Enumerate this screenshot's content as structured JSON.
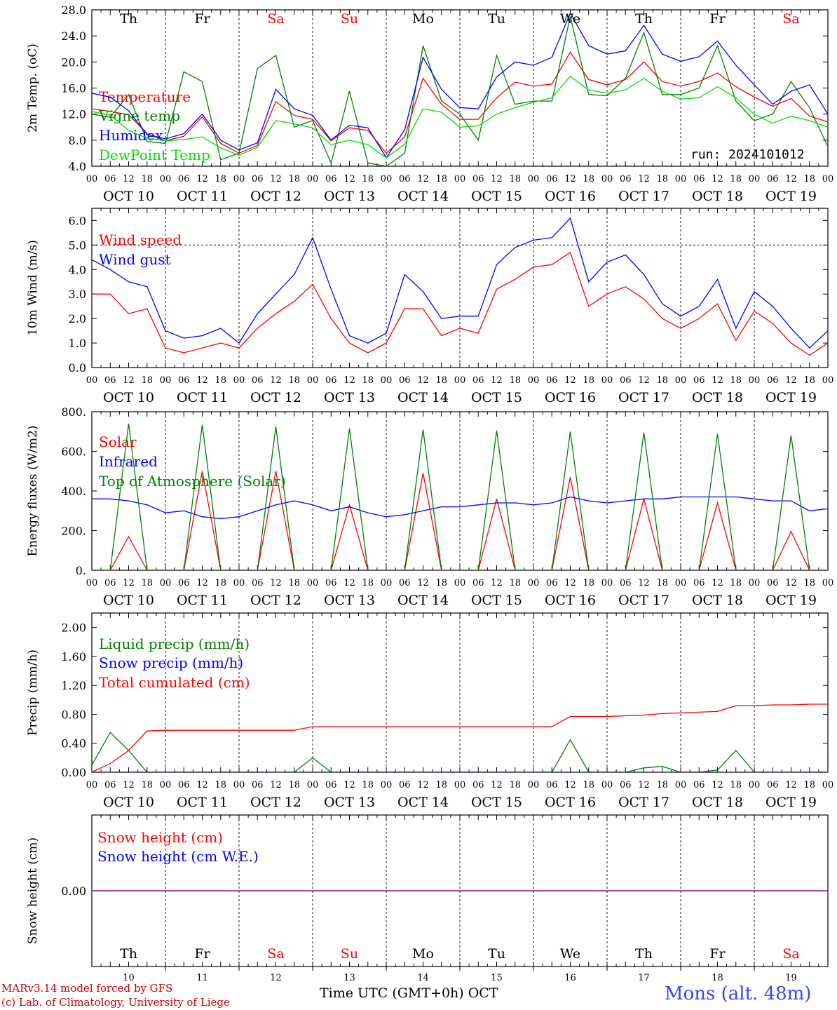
{
  "days": [
    {
      "abbr": "Th",
      "date": "OCT 10",
      "num": "10",
      "weekend": false
    },
    {
      "abbr": "Fr",
      "date": "OCT 11",
      "num": "11",
      "weekend": false
    },
    {
      "abbr": "Sa",
      "date": "OCT 12",
      "num": "12",
      "weekend": true
    },
    {
      "abbr": "Su",
      "date": "OCT 13",
      "num": "13",
      "weekend": true
    },
    {
      "abbr": "Mo",
      "date": "OCT 14",
      "num": "14",
      "weekend": false
    },
    {
      "abbr": "Tu",
      "date": "OCT 15",
      "num": "15",
      "weekend": false
    },
    {
      "abbr": "We",
      "date": "OCT 16",
      "num": "16",
      "weekend": false
    },
    {
      "abbr": "Th",
      "date": "OCT 17",
      "num": "17",
      "weekend": false
    },
    {
      "abbr": "Fr",
      "date": "OCT 18",
      "num": "18",
      "weekend": false
    },
    {
      "abbr": "Sa",
      "date": "OCT 19",
      "num": "19",
      "weekend": true
    }
  ],
  "hour_labels": [
    "00",
    "06",
    "12",
    "18"
  ],
  "run_label": "run: 2024101012",
  "footer": {
    "model": "MARv3.14 model forced by GFS",
    "credit": "(c) Lab. of Climatology, University of Liege",
    "xlabel": "Time UTC (GMT+0h) OCT",
    "station": "Mons (alt. 48m)"
  },
  "colors": {
    "red": "#ff0000",
    "green": "#008000",
    "blue": "#0000ff",
    "lightgreen": "#00e000",
    "purple": "#800080",
    "weekend": "#ff0000"
  },
  "chart_data": [
    {
      "type": "line",
      "ylabel": "2m Temp. (oC)",
      "ylim": [
        4,
        28
      ],
      "yticks": [
        "4.0",
        "8.0",
        "12.0",
        "16.0",
        "20.0",
        "24.0",
        "28.0"
      ],
      "x_hours": [
        0,
        6,
        12,
        18,
        24,
        30,
        36,
        42,
        48,
        54,
        60,
        66,
        72,
        78,
        84,
        90,
        96,
        102,
        108,
        114,
        120,
        126,
        132,
        138,
        144,
        150,
        156,
        162,
        168,
        174,
        180,
        186,
        192,
        198,
        204,
        210,
        216,
        222,
        228,
        234,
        240
      ],
      "series": [
        {
          "name": "Temperature",
          "color": "red",
          "values": [
            12.8,
            12.4,
            11.9,
            9.0,
            7.9,
            8.6,
            11.6,
            7.5,
            6.0,
            7.2,
            13.9,
            11.8,
            11.2,
            7.9,
            9.9,
            9.5,
            6.0,
            8.5,
            17.5,
            13.5,
            11.2,
            11.2,
            14.5,
            16.9,
            16.3,
            16.6,
            21.5,
            17.3,
            16.5,
            17.3,
            20.0,
            17.0,
            16.3,
            17.0,
            18.3,
            16.2,
            14.6,
            13.2,
            14.4,
            11.7,
            10.8
          ]
        },
        {
          "name": "Vigne temp",
          "color": "green",
          "values": [
            12.0,
            11.5,
            15.0,
            7.8,
            7.5,
            18.5,
            17.0,
            5.0,
            6.0,
            19.0,
            21.0,
            10.0,
            11.0,
            4.5,
            15.5,
            4.5,
            4.0,
            6.0,
            22.5,
            14.0,
            12.0,
            8.0,
            21.0,
            13.5,
            14.0,
            14.0,
            27.0,
            15.0,
            14.8,
            17.5,
            24.5,
            15.0,
            15.0,
            16.0,
            22.5,
            14.0,
            11.0,
            12.0,
            17.0,
            13.0,
            7.0
          ]
        },
        {
          "name": "Humidex",
          "color": "blue",
          "values": [
            15.2,
            14.6,
            12.5,
            8.9,
            8.2,
            9.0,
            12.0,
            8.0,
            6.5,
            7.6,
            15.8,
            12.8,
            11.8,
            8.0,
            10.3,
            9.9,
            5.3,
            9.6,
            20.7,
            15.8,
            13.0,
            12.8,
            17.7,
            20.0,
            19.5,
            20.7,
            27.5,
            22.5,
            21.2,
            21.7,
            25.6,
            21.2,
            20.1,
            20.8,
            23.2,
            19.5,
            16.5,
            13.5,
            15.5,
            16.5,
            12.0
          ]
        },
        {
          "name": "DewPoint Temp",
          "color": "lightgreen",
          "values": [
            12.4,
            11.8,
            9.5,
            8.3,
            7.9,
            8.1,
            8.5,
            6.8,
            5.7,
            6.9,
            11.0,
            10.5,
            9.9,
            7.3,
            8.0,
            7.3,
            5.3,
            7.4,
            12.8,
            12.3,
            10.0,
            10.2,
            12.0,
            13.0,
            13.8,
            14.5,
            17.8,
            15.7,
            15.2,
            15.7,
            17.5,
            15.5,
            14.3,
            14.5,
            16.2,
            14.5,
            12.0,
            10.6,
            11.7,
            11.0,
            10.0
          ]
        }
      ]
    },
    {
      "type": "line",
      "ylabel": "10m Wind (m/s)",
      "ylim": [
        0,
        6.5
      ],
      "yticks": [
        "0.0",
        "1.0",
        "2.0",
        "3.0",
        "4.0",
        "5.0",
        "6.0"
      ],
      "x_hours": [
        0,
        6,
        12,
        18,
        24,
        30,
        36,
        42,
        48,
        54,
        60,
        66,
        72,
        78,
        84,
        90,
        96,
        102,
        108,
        114,
        120,
        126,
        132,
        138,
        144,
        150,
        156,
        162,
        168,
        174,
        180,
        186,
        192,
        198,
        204,
        210,
        216,
        222,
        228,
        234,
        240
      ],
      "series": [
        {
          "name": "Wind speed",
          "color": "red",
          "values": [
            3.0,
            3.0,
            2.2,
            2.4,
            0.8,
            0.6,
            0.8,
            1.0,
            0.8,
            1.6,
            2.2,
            2.7,
            3.4,
            2.0,
            1.0,
            0.6,
            1.0,
            2.4,
            2.4,
            1.3,
            1.6,
            1.4,
            3.2,
            3.6,
            4.1,
            4.2,
            4.7,
            2.5,
            3.0,
            3.3,
            2.8,
            2.0,
            1.6,
            2.0,
            2.6,
            1.1,
            2.3,
            1.8,
            1.0,
            0.5,
            1.0
          ]
        },
        {
          "name": "Wind gust",
          "color": "blue",
          "values": [
            4.4,
            4.0,
            3.5,
            3.3,
            1.5,
            1.2,
            1.3,
            1.6,
            1.0,
            2.2,
            3.0,
            3.8,
            5.3,
            3.2,
            1.3,
            1.0,
            1.4,
            3.8,
            3.1,
            2.0,
            2.1,
            2.1,
            4.2,
            4.9,
            5.2,
            5.3,
            6.1,
            3.5,
            4.3,
            4.6,
            3.8,
            2.6,
            2.1,
            2.5,
            3.6,
            1.6,
            3.1,
            2.5,
            1.6,
            0.8,
            1.5
          ]
        }
      ]
    },
    {
      "type": "line",
      "ylabel": "Energy fluxes (W/m2)",
      "ylim": [
        0,
        800
      ],
      "yticks": [
        "0.",
        "200.",
        "400.",
        "600.",
        "800."
      ],
      "x_hours": [
        0,
        6,
        12,
        18,
        24,
        30,
        36,
        42,
        48,
        54,
        60,
        66,
        72,
        78,
        84,
        90,
        96,
        102,
        108,
        114,
        120,
        126,
        132,
        138,
        144,
        150,
        156,
        162,
        168,
        174,
        180,
        186,
        192,
        198,
        204,
        210,
        216,
        222,
        228,
        234,
        240
      ],
      "series": [
        {
          "name": "Solar",
          "color": "red",
          "values": [
            0,
            0,
            170,
            0,
            0,
            0,
            500,
            0,
            0,
            0,
            500,
            0,
            0,
            0,
            330,
            0,
            0,
            0,
            490,
            0,
            0,
            0,
            360,
            0,
            0,
            0,
            470,
            0,
            0,
            0,
            360,
            0,
            0,
            0,
            340,
            0,
            0,
            0,
            195,
            0,
            0
          ]
        },
        {
          "name": "Infrared",
          "color": "blue",
          "values": [
            360,
            360,
            350,
            330,
            290,
            300,
            270,
            260,
            270,
            300,
            330,
            350,
            330,
            300,
            320,
            290,
            270,
            280,
            300,
            320,
            320,
            330,
            340,
            340,
            330,
            340,
            370,
            350,
            340,
            350,
            360,
            360,
            370,
            370,
            370,
            370,
            360,
            350,
            350,
            300,
            310
          ]
        },
        {
          "name": "Top of Atmosphere (Solar)",
          "color": "green",
          "values": [
            0,
            0,
            740,
            0,
            0,
            0,
            735,
            0,
            0,
            0,
            725,
            0,
            0,
            0,
            715,
            0,
            0,
            0,
            710,
            0,
            0,
            0,
            705,
            0,
            0,
            0,
            700,
            0,
            0,
            0,
            695,
            0,
            0,
            0,
            688,
            0,
            0,
            0,
            680,
            0,
            0
          ]
        }
      ]
    },
    {
      "type": "line",
      "ylabel": "Precip (mm/h)",
      "ylim": [
        0,
        2.2
      ],
      "yticks": [
        "0.00",
        "0.40",
        "0.80",
        "1.20",
        "1.60",
        "2.00"
      ],
      "x_hours": [
        0,
        6,
        12,
        18,
        24,
        30,
        36,
        42,
        48,
        54,
        60,
        66,
        72,
        78,
        84,
        90,
        96,
        102,
        108,
        114,
        120,
        126,
        132,
        138,
        144,
        150,
        156,
        162,
        168,
        174,
        180,
        186,
        192,
        198,
        204,
        210,
        216,
        222,
        228,
        234,
        240
      ],
      "series": [
        {
          "name": "Liquid precip (mm/h)",
          "color": "green",
          "values": [
            0.1,
            0.55,
            0.3,
            0,
            0,
            0,
            0,
            0,
            0,
            0,
            0,
            0,
            0.2,
            0,
            0,
            0,
            0,
            0,
            0,
            0,
            0,
            0,
            0,
            0,
            0,
            0,
            0.45,
            0,
            0,
            0,
            0.06,
            0.08,
            0,
            0,
            0.03,
            0.3,
            0,
            0,
            0,
            0,
            0
          ]
        },
        {
          "name": "Snow precip (mm/h)",
          "color": "blue",
          "values": [
            0,
            0,
            0,
            0,
            0,
            0,
            0,
            0,
            0,
            0,
            0,
            0,
            0,
            0,
            0,
            0,
            0,
            0,
            0,
            0,
            0,
            0,
            0,
            0,
            0,
            0,
            0,
            0,
            0,
            0,
            0,
            0,
            0,
            0,
            0,
            0,
            0,
            0,
            0,
            0,
            0
          ]
        },
        {
          "name": "Total cumulated (cm)",
          "color": "red",
          "values": [
            0,
            0.12,
            0.3,
            0.57,
            0.58,
            0.58,
            0.58,
            0.58,
            0.58,
            0.58,
            0.58,
            0.58,
            0.63,
            0.63,
            0.63,
            0.63,
            0.63,
            0.63,
            0.63,
            0.63,
            0.63,
            0.63,
            0.63,
            0.63,
            0.63,
            0.63,
            0.77,
            0.77,
            0.77,
            0.78,
            0.79,
            0.81,
            0.82,
            0.83,
            0.84,
            0.92,
            0.92,
            0.93,
            0.93,
            0.94,
            0.94
          ]
        }
      ]
    },
    {
      "type": "line",
      "ylabel": "Snow height (cm)",
      "ylim": [
        -1,
        1
      ],
      "yticks": [
        "0.00"
      ],
      "x_hours": [
        0,
        240
      ],
      "series": [
        {
          "name": "Snow height (cm)",
          "color": "red",
          "values": [
            0,
            0
          ]
        },
        {
          "name": "Snow height (cm W.E.)",
          "color": "blue",
          "values": [
            0,
            0
          ]
        }
      ]
    }
  ]
}
